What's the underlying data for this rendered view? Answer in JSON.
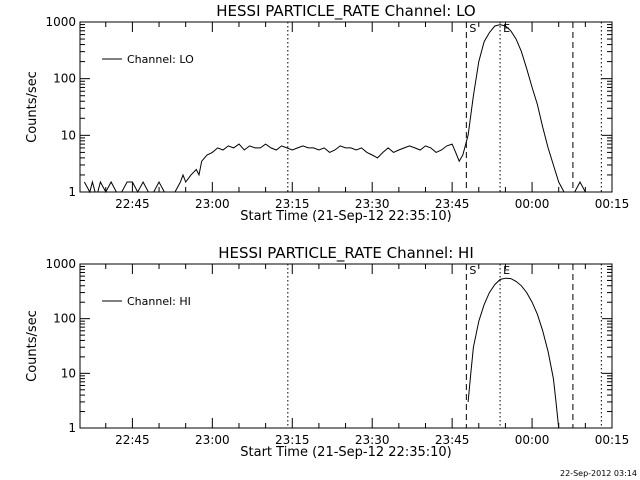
{
  "figure": {
    "footer_timestamp": "22-Sep-2012 03:14"
  },
  "chart_data": [
    {
      "type": "line",
      "title": "HESSI PARTICLE_RATE Channel: LO",
      "xlabel": "Start Time (21-Sep-12 22:35:10)",
      "ylabel": "Counts/sec",
      "yscale": "log",
      "ylim": [
        1,
        1000
      ],
      "xlim": [
        "22:35:10",
        "00:15:00"
      ],
      "x_ticks": [
        "22:45",
        "23:00",
        "23:15",
        "23:30",
        "23:45",
        "00:00",
        "00:15"
      ],
      "y_ticks": [
        "1",
        "10",
        "100",
        "1000"
      ],
      "legend": {
        "position": "top-left",
        "entries": [
          "Channel: LO"
        ]
      },
      "grid": false,
      "markers": [
        {
          "time": "23:14:10",
          "style": "dotted",
          "label": ""
        },
        {
          "time": "23:47:40",
          "style": "dashed",
          "label": "S"
        },
        {
          "time": "23:54:00",
          "style": "dotted",
          "label": "E"
        },
        {
          "time": "00:07:40",
          "style": "dashed",
          "label": ""
        },
        {
          "time": "00:13:00",
          "style": "dotted",
          "label": ""
        }
      ],
      "series": [
        {
          "name": "Channel: LO",
          "x": [
            "22:36:00",
            "22:37:00",
            "22:37:30",
            "22:38:00",
            "22:38:30",
            "22:39:00",
            "22:40:00",
            "22:41:00",
            "22:42:00",
            "22:43:00",
            "22:44:00",
            "22:45:00",
            "22:46:00",
            "22:47:00",
            "22:48:00",
            "22:49:00",
            "22:50:00",
            "22:51:00",
            "22:52:00",
            "22:53:00",
            "22:54:00",
            "22:54:30",
            "22:55:00",
            "22:56:00",
            "22:57:00",
            "22:57:30",
            "22:58:00",
            "22:59:00",
            "23:00:00",
            "23:01:00",
            "23:02:00",
            "23:03:00",
            "23:04:00",
            "23:05:00",
            "23:06:00",
            "23:07:00",
            "23:08:00",
            "23:09:00",
            "23:10:00",
            "23:11:00",
            "23:12:00",
            "23:13:00",
            "23:14:00",
            "23:15:00",
            "23:16:00",
            "23:17:00",
            "23:18:00",
            "23:19:00",
            "23:20:00",
            "23:21:00",
            "23:22:00",
            "23:23:00",
            "23:24:00",
            "23:25:00",
            "23:26:00",
            "23:27:00",
            "23:28:00",
            "23:29:00",
            "23:30:00",
            "23:31:00",
            "23:32:00",
            "23:33:00",
            "23:34:00",
            "23:35:00",
            "23:36:00",
            "23:37:00",
            "23:38:00",
            "23:39:00",
            "23:40:00",
            "23:41:00",
            "23:42:00",
            "23:43:00",
            "23:44:00",
            "23:45:00",
            "23:45:40",
            "23:46:20",
            "23:47:00",
            "23:48:00",
            "23:49:00",
            "23:50:00",
            "23:51:00",
            "23:52:00",
            "23:53:00",
            "23:54:00",
            "23:55:00",
            "23:56:00",
            "23:57:00",
            "23:58:00",
            "23:59:00",
            "00:00:00",
            "00:01:00",
            "00:02:00",
            "00:03:00",
            "00:04:00",
            "00:05:00",
            "00:06:00",
            "00:07:00",
            "00:08:00",
            "00:09:00",
            "00:10:00",
            "00:11:00",
            "00:12:00"
          ],
          "values": [
            1.5,
            1,
            1.5,
            1,
            1,
            1.5,
            1,
            1.5,
            1,
            1,
            1.5,
            1.5,
            1,
            1.5,
            1,
            1,
            1.5,
            1,
            1,
            1,
            1.5,
            2,
            1.5,
            2,
            2.5,
            2,
            3.5,
            4.5,
            5,
            6,
            5.5,
            6.5,
            6,
            7,
            5.5,
            6.5,
            6,
            6,
            7,
            6,
            5.5,
            6.5,
            6,
            5.5,
            6,
            6.5,
            6,
            6,
            5.5,
            6,
            5,
            5.5,
            6.5,
            6,
            6,
            5.5,
            6,
            5,
            4.5,
            4,
            5,
            6,
            5,
            5.5,
            6,
            6.5,
            6,
            5.5,
            6.5,
            6,
            5,
            5.5,
            6.5,
            7,
            5,
            3.5,
            4.5,
            10,
            50,
            200,
            450,
            650,
            850,
            900,
            850,
            700,
            500,
            300,
            150,
            70,
            35,
            14,
            6,
            3,
            1.5,
            1,
            1,
            1,
            1.5,
            1,
            1,
            1
          ]
        }
      ]
    },
    {
      "type": "line",
      "title": "HESSI PARTICLE_RATE Channel: HI",
      "xlabel": "Start Time (21-Sep-12 22:35:10)",
      "ylabel": "Counts/sec",
      "yscale": "log",
      "ylim": [
        1,
        1000
      ],
      "xlim": [
        "22:35:10",
        "00:15:00"
      ],
      "x_ticks": [
        "22:45",
        "23:00",
        "23:15",
        "23:30",
        "23:45",
        "00:00",
        "00:15"
      ],
      "y_ticks": [
        "1",
        "10",
        "100",
        "1000"
      ],
      "legend": {
        "position": "top-left",
        "entries": [
          "Channel: HI"
        ]
      },
      "grid": false,
      "markers": [
        {
          "time": "23:14:10",
          "style": "dotted",
          "label": ""
        },
        {
          "time": "23:47:40",
          "style": "dashed",
          "label": "S"
        },
        {
          "time": "23:54:00",
          "style": "dotted",
          "label": "E"
        },
        {
          "time": "00:07:40",
          "style": "dashed",
          "label": ""
        },
        {
          "time": "00:13:00",
          "style": "dotted",
          "label": ""
        }
      ],
      "series": [
        {
          "name": "Channel: HI",
          "x": [
            "23:48:00",
            "23:48:30",
            "23:49:00",
            "23:50:00",
            "23:51:00",
            "23:52:00",
            "23:53:00",
            "23:54:00",
            "23:55:00",
            "23:56:00",
            "23:57:00",
            "23:58:00",
            "23:59:00",
            "00:00:00",
            "00:01:00",
            "00:02:00",
            "00:03:00",
            "00:04:00",
            "00:04:30",
            "00:05:00"
          ],
          "values": [
            3,
            10,
            30,
            90,
            180,
            300,
            420,
            520,
            550,
            540,
            480,
            400,
            300,
            200,
            120,
            60,
            25,
            8,
            3,
            1
          ]
        }
      ]
    }
  ]
}
